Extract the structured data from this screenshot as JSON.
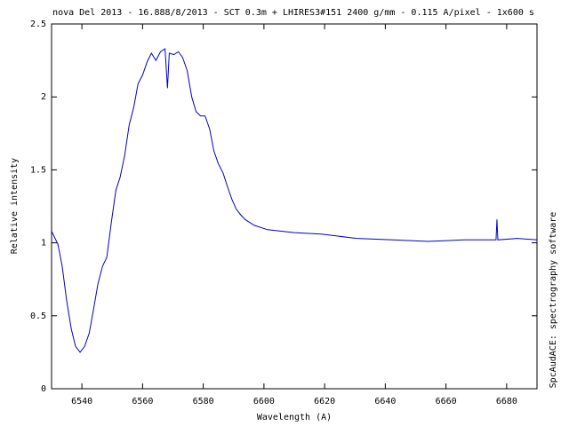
{
  "chart_data": {
    "type": "line",
    "title": "nova Del 2013 - 16.888/8/2013 - SCT 0.3m + LHIRES3#151 2400 g/mm - 0.115 A/pixel - 1x600 s",
    "x_label": "Wavelength (A)",
    "y_label": "Relative intensity",
    "side_note": "SpcAudACE: spectrography software",
    "x": [
      6530,
      6532.1,
      6533.5,
      6535,
      6536.5,
      6537.9,
      6539.4,
      6540.9,
      6542.4,
      6543.8,
      6545.3,
      6546.8,
      6548.2,
      6549.7,
      6551.2,
      6552.6,
      6554.1,
      6555.6,
      6557.1,
      6558.5,
      6560,
      6561.5,
      6562.9,
      6564.4,
      6565.9,
      6567.4,
      6568.2,
      6568.8,
      6570.3,
      6571.8,
      6573.2,
      6574.7,
      6576.2,
      6577.6,
      6579.1,
      6580.6,
      6582.1,
      6583.5,
      6585,
      6586.5,
      6587.9,
      6589.4,
      6590.9,
      6592.4,
      6593.8,
      6596.8,
      6601.2,
      6610,
      6618.8,
      6630.6,
      6642.4,
      6654.1,
      6665.9,
      6676.5,
      6676.8,
      6677.1,
      6683.5,
      6690
    ],
    "series": [
      {
        "name": "spectrum",
        "color": "#0000cc",
        "values": [
          1.08,
          0.99,
          0.84,
          0.6,
          0.41,
          0.29,
          0.25,
          0.29,
          0.38,
          0.54,
          0.72,
          0.84,
          0.9,
          1.14,
          1.36,
          1.45,
          1.6,
          1.81,
          1.93,
          2.09,
          2.15,
          2.24,
          2.3,
          2.25,
          2.31,
          2.33,
          2.06,
          2.3,
          2.29,
          2.31,
          2.27,
          2.18,
          2.0,
          1.9,
          1.87,
          1.87,
          1.78,
          1.63,
          1.54,
          1.48,
          1.39,
          1.3,
          1.23,
          1.19,
          1.16,
          1.12,
          1.09,
          1.07,
          1.06,
          1.03,
          1.02,
          1.01,
          1.02,
          1.02,
          1.16,
          1.02,
          1.03,
          1.02
        ]
      }
    ],
    "xlim": [
      6530,
      6690
    ],
    "ylim": [
      0,
      2.5
    ],
    "xticks": [
      6540,
      6560,
      6580,
      6600,
      6620,
      6640,
      6660,
      6680
    ],
    "yticks": [
      0,
      0.5,
      1,
      1.5,
      2,
      2.5
    ],
    "grid": false
  }
}
